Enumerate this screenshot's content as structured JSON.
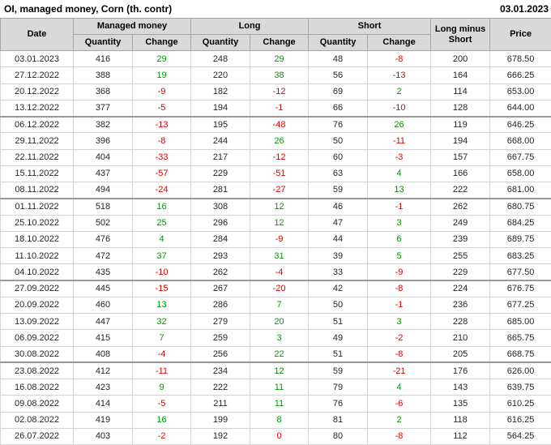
{
  "page": {
    "title": "OI, managed money, Corn (th. contr)",
    "report_date": "03.01.2023"
  },
  "chart_data": {
    "type": "table",
    "title": "OI, managed money, Corn (th. contr)",
    "report_date": "03.01.2023",
    "header": {
      "date": "Date",
      "groups": [
        "Managed money",
        "Long",
        "Short"
      ],
      "quantity": "Quantity",
      "change": "Change",
      "long_minus_short": "Long minus Short",
      "price": "Price"
    },
    "columns": [
      "Date",
      "Managed money Quantity",
      "Managed money Change",
      "Long Quantity",
      "Long Change",
      "Short Quantity",
      "Short Change",
      "Long minus Short",
      "Price"
    ],
    "rows": [
      [
        "03.01.2023",
        416,
        29,
        248,
        29,
        48,
        -8,
        200,
        "678.50"
      ],
      [
        "27.12.2022",
        388,
        19,
        220,
        38,
        56,
        -13,
        164,
        "666.25"
      ],
      [
        "20.12.2022",
        368,
        -9,
        182,
        -12,
        69,
        2,
        114,
        "653.00"
      ],
      [
        "13.12.2022",
        377,
        -5,
        194,
        -1,
        66,
        -10,
        128,
        "644.00"
      ],
      [
        "06.12.2022",
        382,
        -13,
        195,
        -48,
        76,
        26,
        119,
        "646.25"
      ],
      [
        "29.11.2022",
        396,
        -8,
        244,
        26,
        50,
        -11,
        194,
        "668.00"
      ],
      [
        "22.11.2022",
        404,
        -33,
        217,
        -12,
        60,
        -3,
        157,
        "667.75"
      ],
      [
        "15.11.2022",
        437,
        -57,
        229,
        -51,
        63,
        4,
        166,
        "658.00"
      ],
      [
        "08.11.2022",
        494,
        -24,
        281,
        -27,
        59,
        13,
        222,
        "681.00"
      ],
      [
        "01.11.2022",
        518,
        16,
        308,
        12,
        46,
        -1,
        262,
        "680.75"
      ],
      [
        "25.10.2022",
        502,
        25,
        296,
        12,
        47,
        3,
        249,
        "684.25"
      ],
      [
        "18.10.2022",
        476,
        4,
        284,
        -9,
        44,
        6,
        239,
        "689.75"
      ],
      [
        "11.10.2022",
        472,
        37,
        293,
        31,
        39,
        5,
        255,
        "683.25"
      ],
      [
        "04.10.2022",
        435,
        -10,
        262,
        -4,
        33,
        -9,
        229,
        "677.50"
      ],
      [
        "27.09.2022",
        445,
        -15,
        267,
        -20,
        42,
        -8,
        224,
        "676.75"
      ],
      [
        "20.09.2022",
        460,
        13,
        286,
        7,
        50,
        -1,
        236,
        "677.25"
      ],
      [
        "13.09.2022",
        447,
        32,
        279,
        20,
        51,
        3,
        228,
        "685.00"
      ],
      [
        "06.09.2022",
        415,
        7,
        259,
        3,
        49,
        -2,
        210,
        "665.75"
      ],
      [
        "30.08.2022",
        408,
        -4,
        256,
        22,
        51,
        -8,
        205,
        "668.75"
      ],
      [
        "23.08.2022",
        412,
        -11,
        234,
        12,
        59,
        -21,
        176,
        "626.00"
      ],
      [
        "16.08.2022",
        423,
        9,
        222,
        11,
        79,
        4,
        143,
        "639.75"
      ],
      [
        "09.08.2022",
        414,
        -5,
        211,
        11,
        76,
        -6,
        135,
        "610.25"
      ],
      [
        "02.08.2022",
        419,
        16,
        199,
        8,
        81,
        2,
        118,
        "616.25"
      ],
      [
        "26.07.2022",
        403,
        -2,
        192,
        0,
        80,
        -8,
        112,
        "564.25"
      ]
    ]
  },
  "colors": {
    "positive": "#009900",
    "negative": "#dd0000",
    "header_bg": "#d9d9d9"
  }
}
